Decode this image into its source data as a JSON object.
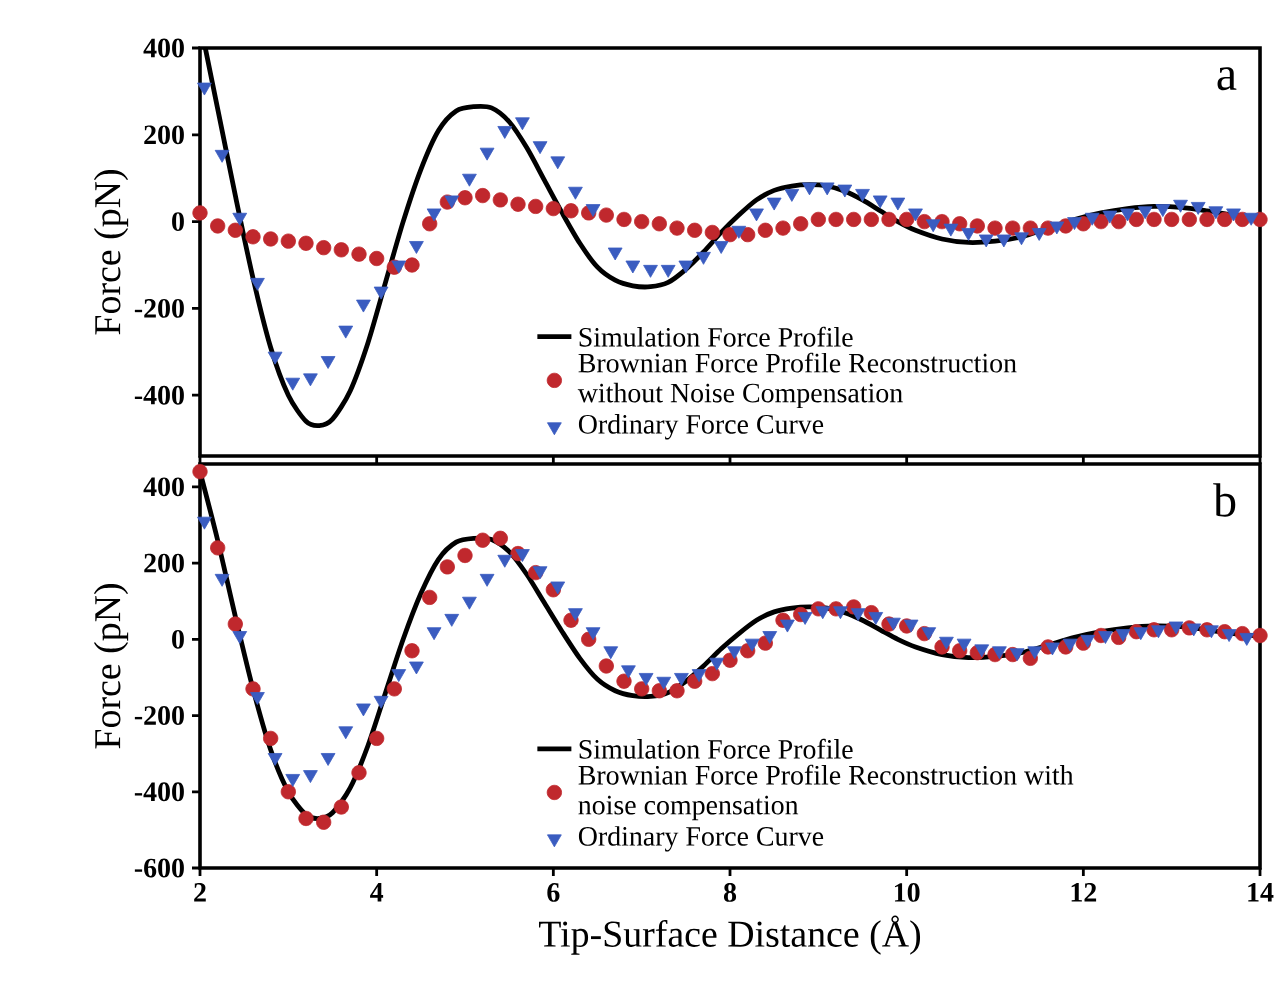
{
  "chart_data": [
    {
      "type": "line",
      "ylabel": "Force (pN)",
      "annotations": [
        "a"
      ],
      "xlim": [
        2,
        14
      ],
      "ylim": [
        -540,
        400
      ],
      "xticks": [
        2,
        4,
        6,
        8,
        10,
        12,
        14
      ],
      "yticks": [
        -400,
        -200,
        0,
        200,
        400
      ],
      "tick_labels": "y",
      "legend": "bottom",
      "series": [
        {
          "name": "Simulation Force Profile",
          "type": "line",
          "marker": "none",
          "color": "#000000",
          "x": [
            2.06,
            2.2,
            2.4,
            2.6,
            2.8,
            3.0,
            3.2,
            3.35,
            3.5,
            3.7,
            3.9,
            4.1,
            4.3,
            4.5,
            4.7,
            4.9,
            5.1,
            5.3,
            5.5,
            5.7,
            5.9,
            6.1,
            6.3,
            6.5,
            6.7,
            6.9,
            7.1,
            7.3,
            7.5,
            7.7,
            7.9,
            8.1,
            8.3,
            8.5,
            8.7,
            8.9,
            9.1,
            9.3,
            9.5,
            9.7,
            9.9,
            10.1,
            10.4,
            10.7,
            11.0,
            11.3,
            11.6,
            11.9,
            12.2,
            12.5,
            12.8,
            13.1,
            13.4,
            13.7,
            14.0
          ],
          "values": [
            400,
            260,
            60,
            -130,
            -290,
            -400,
            -460,
            -470,
            -455,
            -390,
            -280,
            -140,
            0,
            120,
            210,
            255,
            265,
            262,
            230,
            170,
            95,
            20,
            -50,
            -105,
            -135,
            -148,
            -150,
            -140,
            -110,
            -70,
            -25,
            15,
            50,
            72,
            82,
            85,
            82,
            70,
            50,
            25,
            0,
            -20,
            -40,
            -48,
            -45,
            -35,
            -15,
            5,
            20,
            30,
            35,
            33,
            25,
            15,
            8
          ]
        },
        {
          "name": "Brownian Force Profile Reconstruction without Noise Compensation",
          "type": "scatter",
          "marker": "circle",
          "color": "#c0282d",
          "x": [
            2.0,
            2.2,
            2.4,
            2.6,
            2.8,
            3.0,
            3.2,
            3.4,
            3.6,
            3.8,
            4.0,
            4.2,
            4.4,
            4.6,
            4.8,
            5.0,
            5.2,
            5.4,
            5.6,
            5.8,
            6.0,
            6.2,
            6.4,
            6.6,
            6.8,
            7.0,
            7.2,
            7.4,
            7.6,
            7.8,
            8.0,
            8.2,
            8.4,
            8.6,
            8.8,
            9.0,
            9.2,
            9.4,
            9.6,
            9.8,
            10.0,
            10.2,
            10.4,
            10.6,
            10.8,
            11.0,
            11.2,
            11.4,
            11.6,
            11.8,
            12.0,
            12.2,
            12.4,
            12.6,
            12.8,
            13.0,
            13.2,
            13.4,
            13.6,
            13.8,
            14.0
          ],
          "values": [
            20,
            -10,
            -20,
            -35,
            -40,
            -45,
            -50,
            -60,
            -65,
            -75,
            -85,
            -105,
            -100,
            -5,
            45,
            55,
            60,
            50,
            40,
            35,
            30,
            25,
            20,
            15,
            5,
            0,
            -5,
            -15,
            -20,
            -25,
            -30,
            -30,
            -20,
            -15,
            -5,
            5,
            5,
            5,
            5,
            5,
            5,
            0,
            0,
            -5,
            -10,
            -15,
            -15,
            -15,
            -15,
            -10,
            -5,
            0,
            0,
            5,
            5,
            5,
            5,
            5,
            5,
            5,
            5
          ]
        },
        {
          "name": "Ordinary Force Curve",
          "type": "scatter",
          "marker": "triangle",
          "color": "#3a5cc0",
          "x": [
            2.05,
            2.25,
            2.45,
            2.65,
            2.85,
            3.05,
            3.25,
            3.45,
            3.65,
            3.85,
            4.05,
            4.25,
            4.45,
            4.65,
            4.85,
            5.05,
            5.25,
            5.45,
            5.65,
            5.85,
            6.05,
            6.25,
            6.45,
            6.7,
            6.9,
            7.1,
            7.3,
            7.5,
            7.7,
            7.9,
            8.1,
            8.3,
            8.5,
            8.7,
            8.9,
            9.1,
            9.3,
            9.5,
            9.7,
            9.9,
            10.1,
            10.3,
            10.5,
            10.7,
            10.9,
            11.1,
            11.3,
            11.5,
            11.7,
            11.9,
            12.1,
            12.3,
            12.5,
            12.7,
            12.9,
            13.1,
            13.3,
            13.5,
            13.7,
            13.9
          ],
          "values": [
            310,
            155,
            10,
            -140,
            -310,
            -370,
            -360,
            -320,
            -250,
            -190,
            -160,
            -100,
            -55,
            20,
            50,
            100,
            160,
            210,
            230,
            175,
            140,
            70,
            30,
            -70,
            -100,
            -110,
            -110,
            -100,
            -80,
            -55,
            -20,
            20,
            45,
            65,
            80,
            80,
            75,
            65,
            50,
            45,
            20,
            -5,
            -15,
            -25,
            -40,
            -40,
            -35,
            -25,
            -10,
            0,
            10,
            15,
            20,
            25,
            30,
            40,
            35,
            25,
            20,
            10
          ]
        }
      ]
    },
    {
      "type": "line",
      "xlabel": "Tip-Surface Distance (Å)",
      "ylabel": "Force (pN)",
      "annotations": [
        "b"
      ],
      "xlim": [
        2,
        14
      ],
      "ylim": [
        -600,
        460
      ],
      "xticks": [
        2,
        4,
        6,
        8,
        10,
        12,
        14
      ],
      "yticks": [
        -600,
        -400,
        -200,
        0,
        200,
        400
      ],
      "legend": "bottom",
      "series": [
        {
          "name": "Simulation Force Profile",
          "type": "line",
          "marker": "none",
          "color": "#000000",
          "x": [
            2.0,
            2.2,
            2.4,
            2.6,
            2.8,
            3.0,
            3.2,
            3.35,
            3.5,
            3.7,
            3.9,
            4.1,
            4.3,
            4.5,
            4.7,
            4.9,
            5.1,
            5.3,
            5.5,
            5.7,
            5.9,
            6.1,
            6.3,
            6.5,
            6.7,
            6.9,
            7.1,
            7.3,
            7.5,
            7.7,
            7.9,
            8.1,
            8.3,
            8.5,
            8.7,
            8.9,
            9.1,
            9.3,
            9.5,
            9.7,
            9.9,
            10.1,
            10.4,
            10.7,
            11.0,
            11.3,
            11.6,
            11.9,
            12.2,
            12.5,
            12.8,
            13.1,
            13.4,
            13.7,
            14.0
          ],
          "values": [
            440,
            260,
            60,
            -130,
            -290,
            -400,
            -460,
            -470,
            -455,
            -390,
            -280,
            -140,
            0,
            120,
            210,
            255,
            265,
            262,
            230,
            170,
            95,
            20,
            -50,
            -105,
            -135,
            -148,
            -150,
            -140,
            -110,
            -70,
            -25,
            15,
            50,
            72,
            82,
            85,
            82,
            70,
            50,
            25,
            0,
            -20,
            -40,
            -48,
            -45,
            -35,
            -15,
            5,
            20,
            30,
            35,
            33,
            25,
            15,
            8
          ]
        },
        {
          "name": "Brownian Force Profile Reconstruction with noise compensation",
          "type": "scatter",
          "marker": "circle",
          "color": "#c0282d",
          "x": [
            2.0,
            2.2,
            2.4,
            2.6,
            2.8,
            3.0,
            3.2,
            3.4,
            3.6,
            3.8,
            4.0,
            4.2,
            4.4,
            4.6,
            4.8,
            5.0,
            5.2,
            5.4,
            5.6,
            5.8,
            6.0,
            6.2,
            6.4,
            6.6,
            6.8,
            7.0,
            7.2,
            7.4,
            7.6,
            7.8,
            8.0,
            8.2,
            8.4,
            8.6,
            8.8,
            9.0,
            9.2,
            9.4,
            9.6,
            9.8,
            10.0,
            10.2,
            10.4,
            10.6,
            10.8,
            11.0,
            11.2,
            11.4,
            11.6,
            11.8,
            12.0,
            12.2,
            12.4,
            12.6,
            12.8,
            13.0,
            13.2,
            13.4,
            13.6,
            13.8,
            14.0
          ],
          "values": [
            440,
            240,
            40,
            -130,
            -260,
            -400,
            -470,
            -480,
            -440,
            -350,
            -260,
            -130,
            -30,
            110,
            190,
            220,
            260,
            265,
            225,
            175,
            130,
            50,
            0,
            -70,
            -110,
            -130,
            -135,
            -135,
            -110,
            -90,
            -55,
            -30,
            -10,
            50,
            65,
            80,
            80,
            85,
            70,
            40,
            35,
            15,
            -20,
            -30,
            -35,
            -40,
            -40,
            -50,
            -20,
            -20,
            -10,
            10,
            5,
            20,
            25,
            25,
            30,
            25,
            20,
            15,
            10
          ]
        },
        {
          "name": "Ordinary Force Curve",
          "type": "scatter",
          "marker": "triangle",
          "color": "#3a5cc0",
          "x": [
            2.05,
            2.25,
            2.45,
            2.65,
            2.85,
            3.05,
            3.25,
            3.45,
            3.65,
            3.85,
            4.05,
            4.25,
            4.45,
            4.65,
            4.85,
            5.05,
            5.25,
            5.45,
            5.65,
            5.85,
            6.05,
            6.25,
            6.45,
            6.65,
            6.85,
            7.05,
            7.25,
            7.45,
            7.65,
            7.85,
            8.05,
            8.25,
            8.45,
            8.65,
            8.85,
            9.05,
            9.25,
            9.45,
            9.65,
            9.85,
            10.05,
            10.25,
            10.45,
            10.65,
            10.85,
            11.05,
            11.25,
            11.45,
            11.65,
            11.85,
            12.05,
            12.25,
            12.45,
            12.65,
            12.85,
            13.05,
            13.25,
            13.45,
            13.65,
            13.85
          ],
          "values": [
            310,
            160,
            10,
            -150,
            -310,
            -365,
            -355,
            -310,
            -240,
            -180,
            -160,
            -90,
            -70,
            20,
            55,
            100,
            160,
            210,
            225,
            180,
            140,
            70,
            20,
            -30,
            -80,
            -100,
            -110,
            -100,
            -90,
            -60,
            -30,
            -10,
            10,
            40,
            60,
            75,
            75,
            70,
            60,
            45,
            40,
            20,
            -5,
            -10,
            -25,
            -30,
            -35,
            -30,
            -20,
            -10,
            0,
            10,
            15,
            20,
            25,
            35,
            30,
            25,
            15,
            5
          ]
        }
      ]
    }
  ]
}
